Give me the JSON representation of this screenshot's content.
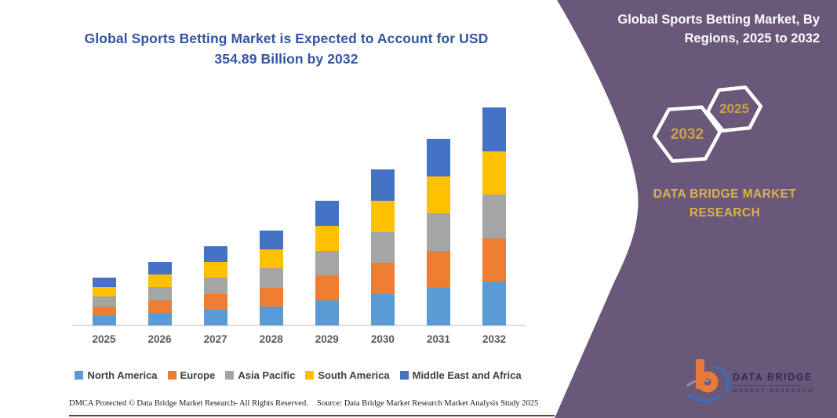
{
  "main_chart": {
    "title_line1": "Global Sports Betting Market is Expected to Account for USD",
    "title_line2": "354.89 Billion by 2032",
    "title_color": "#3155A1"
  },
  "chart_data": {
    "type": "bar",
    "stacked": true,
    "unit": "USD Billion",
    "categories": [
      "2025",
      "2026",
      "2027",
      "2028",
      "2029",
      "2030",
      "2031",
      "2032"
    ],
    "totals": [
      77.9,
      103.4,
      128.9,
      154.5,
      203.0,
      254.0,
      303.8,
      354.89
    ],
    "series": [
      {
        "name": "North America",
        "color": "#5B9BD5",
        "values": [
          15.6,
          20.7,
          25.8,
          30.9,
          40.6,
          50.8,
          60.8,
          71.0
        ]
      },
      {
        "name": "Europe",
        "color": "#ED7D31",
        "values": [
          15.6,
          20.7,
          25.8,
          30.9,
          40.6,
          50.8,
          60.8,
          71.0
        ]
      },
      {
        "name": "Asia Pacific",
        "color": "#A5A5A5",
        "values": [
          15.6,
          20.7,
          25.8,
          30.9,
          40.6,
          50.8,
          60.8,
          71.0
        ]
      },
      {
        "name": "South America",
        "color": "#FFC000",
        "values": [
          15.6,
          20.7,
          25.8,
          30.9,
          40.6,
          50.8,
          60.8,
          71.0
        ]
      },
      {
        "name": "Middle East and Africa",
        "color": "#4472C4",
        "values": [
          15.6,
          20.7,
          25.8,
          30.9,
          40.6,
          50.8,
          60.8,
          71.0
        ]
      }
    ],
    "ylim": [
      0,
      380
    ],
    "y_axis_visible": false,
    "grid": false,
    "legend_position": "bottom"
  },
  "footer": {
    "dmca": "DMCA Protected © Data Bridge Market Research-  All Rights Reserved.",
    "source": "Source: Data Bridge Market Research  Market Analysis Study 2025"
  },
  "side_panel": {
    "title": "Global Sports Betting Market, By Regions, 2025 to 2032",
    "hexagon_back_year": "2032",
    "hexagon_front_year": "2025",
    "brand": "DATA BRIDGE MARKET RESEARCH",
    "background_color": "#695879",
    "gold_year_color": "#C9A24B",
    "gold_brand_color": "#DCB24E",
    "logo": {
      "line1": "DATA BRIDGE",
      "line2": "MARKET RESEARCH"
    }
  }
}
